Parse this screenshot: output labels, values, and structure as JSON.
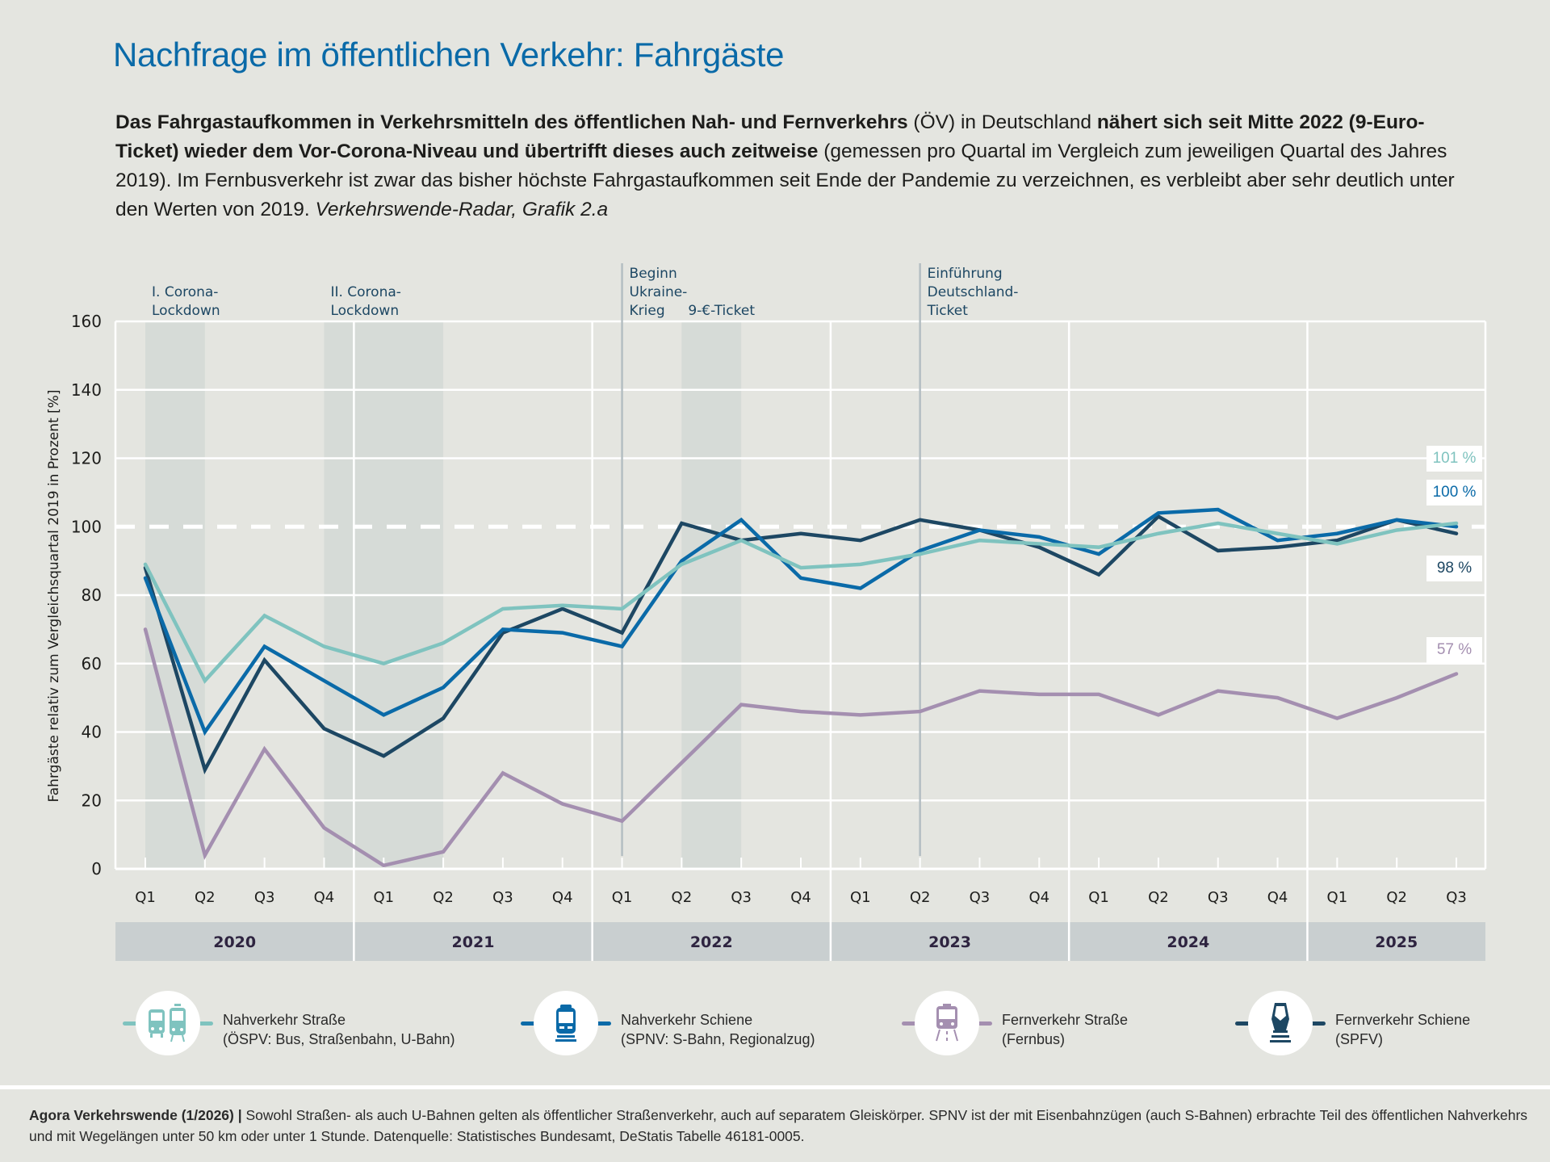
{
  "title": "Nachfrage im öffentlichen Verkehr: Fahrgäste",
  "subtitle": {
    "bold1": "Das Fahrgastaufkommen in Verkehrsmitteln des öffentlichen Nah- und Fernverkehrs",
    "normal1": " (ÖV) in Deutschland ",
    "bold2": "nähert sich seit Mitte 2022 (9-Euro-Ticket) wieder dem Vor-Corona-Niveau und übertrifft dieses auch zeitweise",
    "normal2": " (gemessen pro Quartal im Vergleich zum jeweiligen Quartal des Jahres 2019). Im Fernbusverkehr ist zwar das bisher höchste Fahrgastaufkommen seit Ende der Pandemie zu verzeichnen, es verbleibt aber sehr deutlich unter den Werten von 2019. ",
    "italic": "Verkehrswende-Radar, Grafik 2.a"
  },
  "colors": {
    "nahverkehr_strasse": "#7fc3bf",
    "nahverkehr_schiene": "#0a6aa8",
    "fernverkehr_strasse": "#a48fb0",
    "fernverkehr_schiene": "#1d4763",
    "annotation_text": "#1d4763",
    "background": "#e4e5e0",
    "shade": "#d6dbd7",
    "year_band": "#c9cfd0"
  },
  "chart_data": {
    "type": "line",
    "title": "Nachfrage im öffentlichen Verkehr: Fahrgäste",
    "xlabel": "",
    "ylabel": "Fahrgäste relativ zum Vergleichsquartal 2019 in Prozent [%]",
    "ylim": [
      0,
      160
    ],
    "yticks": [
      0,
      20,
      40,
      60,
      80,
      100,
      120,
      140,
      160
    ],
    "reference_line": 100,
    "grid": true,
    "quarters": [
      "Q1",
      "Q2",
      "Q3",
      "Q4",
      "Q1",
      "Q2",
      "Q3",
      "Q4",
      "Q1",
      "Q2",
      "Q3",
      "Q4",
      "Q1",
      "Q2",
      "Q3",
      "Q4",
      "Q1",
      "Q2",
      "Q3",
      "Q4",
      "Q1",
      "Q2",
      "Q3"
    ],
    "years": [
      {
        "label": "2020",
        "quarters": 4
      },
      {
        "label": "2021",
        "quarters": 4
      },
      {
        "label": "2022",
        "quarters": 4
      },
      {
        "label": "2023",
        "quarters": 4
      },
      {
        "label": "2024",
        "quarters": 4
      },
      {
        "label": "2025",
        "quarters": 3
      }
    ],
    "shaded_periods": [
      {
        "name": "I. Corona-Lockdown",
        "from": 0,
        "to": 1
      },
      {
        "name": "II. Corona-Lockdown",
        "from": 3,
        "to": 5
      },
      {
        "name": "9-€-Ticket",
        "from": 9,
        "to": 10
      }
    ],
    "events": [
      {
        "label": [
          "Beginn",
          "Ukraine-",
          "Krieg"
        ],
        "at": 8
      },
      {
        "label": [
          "Einführung",
          "Deutschland-",
          "Ticket"
        ],
        "at": 13
      }
    ],
    "period_labels": [
      {
        "lines": [
          "I. Corona-",
          "Lockdown"
        ],
        "at": 0
      },
      {
        "lines": [
          "II. Corona-",
          "Lockdown"
        ],
        "at": 3
      },
      {
        "lines": [
          "9-€-Ticket"
        ],
        "at": 9
      }
    ],
    "series": [
      {
        "key": "nahverkehr_strasse",
        "name": "Nahverkehr Straße",
        "values": [
          89,
          55,
          74,
          65,
          60,
          66,
          76,
          77,
          76,
          89,
          96,
          88,
          89,
          92,
          96,
          95,
          94,
          98,
          101,
          98,
          95,
          99,
          101
        ],
        "end_label": "101 %"
      },
      {
        "key": "nahverkehr_schiene",
        "name": "Nahverkehr Schiene",
        "values": [
          85,
          40,
          65,
          55,
          45,
          53,
          70,
          69,
          65,
          90,
          102,
          85,
          82,
          93,
          99,
          97,
          92,
          104,
          105,
          96,
          98,
          102,
          100
        ],
        "end_label": "100 %"
      },
      {
        "key": "fernverkehr_strasse",
        "name": "Fernverkehr Straße",
        "values": [
          70,
          4,
          35,
          12,
          1,
          5,
          28,
          19,
          14,
          31,
          48,
          46,
          45,
          46,
          52,
          51,
          51,
          45,
          52,
          50,
          44,
          50,
          57
        ],
        "end_label": "57 %"
      },
      {
        "key": "fernverkehr_schiene",
        "name": "Fernverkehr Schiene",
        "values": [
          88,
          29,
          61,
          41,
          33,
          44,
          69,
          76,
          69,
          101,
          96,
          98,
          96,
          102,
          99,
          94,
          86,
          103,
          93,
          94,
          96,
          102,
          98
        ],
        "end_label": "98 %"
      }
    ]
  },
  "legend": [
    {
      "key": "nahverkehr_strasse",
      "icon": "bus-tram-icon",
      "line1": "Nahverkehr Straße",
      "line2": "(ÖSPV: Bus, Straßenbahn, U-Bahn)"
    },
    {
      "key": "nahverkehr_schiene",
      "icon": "regional-train-icon",
      "line1": "Nahverkehr Schiene",
      "line2": "(SPNV: S-Bahn, Regionalzug)"
    },
    {
      "key": "fernverkehr_strasse",
      "icon": "coach-bus-icon",
      "line1": "Fernverkehr Straße",
      "line2": "(Fernbus)"
    },
    {
      "key": "fernverkehr_schiene",
      "icon": "high-speed-train-icon",
      "line1": "Fernverkehr Schiene",
      "line2": "(SPFV)"
    }
  ],
  "footer": {
    "source_bold": "Agora Verkehrswende (1/2026) |",
    "text": " Sowohl Straßen- als auch U-Bahnen gelten als öffentlicher Straßenverkehr, auch auf separatem Gleiskörper. SPNV ist der mit Eisenbahnzügen (auch S-Bahnen) erbrachte Teil des öffentlichen Nahverkehrs und mit Wegelängen unter 50 km oder unter 1 Stunde. Datenquelle: Statistisches Bundesamt, DeStatis Tabelle 46181-0005."
  }
}
